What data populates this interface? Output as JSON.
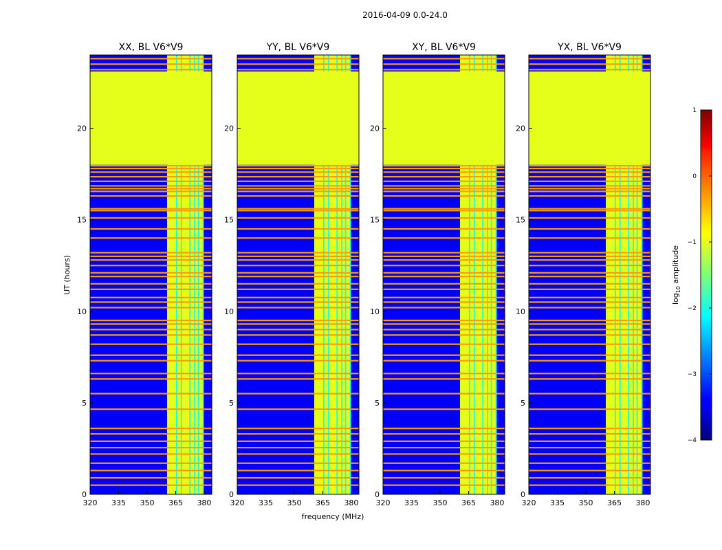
{
  "figure_title": "2016-04-09 0.0-24.0",
  "chart_data": {
    "type": "heatmap",
    "suptitle": "2016-04-09 0.0-24.0",
    "xlabel": "frequency (MHz)",
    "ylabel": "UT (hours)",
    "xlim": [
      320,
      384
    ],
    "ylim": [
      0,
      24
    ],
    "xticks": [
      "320",
      "335",
      "350",
      "365",
      "380"
    ],
    "xtick_values": [
      320,
      335,
      350,
      365,
      380
    ],
    "yticks": [
      "0",
      "5",
      "10",
      "15",
      "20"
    ],
    "ytick_values": [
      0,
      5,
      10,
      15,
      20
    ],
    "colorbar": {
      "label": "log10 amplitude",
      "label_base": "log",
      "label_sub": "10",
      "label_rest": " amplitude",
      "range": [
        -4,
        1
      ],
      "ticks": [
        "1",
        "0",
        "−1",
        "−2",
        "−3",
        "−4"
      ],
      "tick_values": [
        1,
        0,
        -1,
        -2,
        -3,
        -4
      ],
      "colormap": "jet"
    },
    "panels": [
      {
        "title": "XX, BL V6*V9",
        "polarization": "XX",
        "baseline": "V6*V9"
      },
      {
        "title": "YY, BL V6*V9",
        "polarization": "YY",
        "baseline": "V6*V9"
      },
      {
        "title": "XY, BL V6*V9",
        "polarization": "XY",
        "baseline": "V6*V9"
      },
      {
        "title": "YX, BL V6*V9",
        "polarization": "YX",
        "baseline": "V6*V9"
      }
    ],
    "data_gap": {
      "ut_start": 18.0,
      "ut_end": 23.1,
      "log10_amplitude": -1.0
    },
    "background_log10_amplitude": -3.4,
    "rfi_band_mhz": [
      360.5,
      379.5
    ],
    "rfi_band_log10_amplitude": -1.0,
    "rfi_channels_mhz": [
      365.5,
      368.0,
      372.5,
      375.0,
      377.0,
      379.5
    ],
    "flagged_times_ut": [
      0.5,
      0.9,
      1.3,
      1.7,
      2.2,
      2.55,
      2.9,
      3.3,
      3.6,
      4.65,
      5.5,
      6.3,
      6.6,
      7.3,
      7.6,
      8.2,
      8.7,
      9.0,
      9.3,
      9.5,
      10.2,
      10.5,
      10.75,
      11.2,
      11.5,
      11.9,
      12.1,
      12.5,
      12.8,
      13.0,
      13.2,
      14.0,
      14.5,
      15.1,
      15.5,
      15.6,
      16.3,
      16.55,
      16.7,
      16.85,
      17.1,
      17.35,
      17.6,
      17.8,
      17.95,
      23.2,
      23.5,
      23.8
    ],
    "flagged_times_log10_amplitude": -0.4
  }
}
